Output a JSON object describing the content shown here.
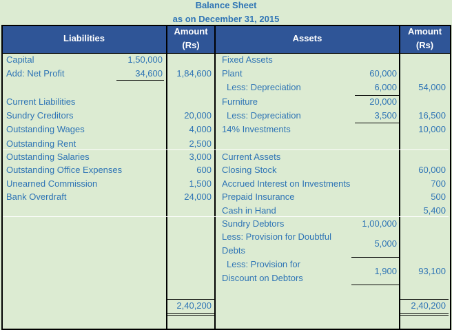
{
  "title": "Balance Sheet",
  "subtitle": "as on December 31, 2015",
  "headers": {
    "liabilities": "Liabilities",
    "amount1": "Amount",
    "rs1": "(Rs)",
    "assets": "Assets",
    "amount2": "Amount",
    "rs2": "(Rs)"
  },
  "liabilities": [
    {
      "label": "Capital",
      "sub": "1,50,000",
      "amount": ""
    },
    {
      "label": "Add: Net Profit",
      "sub": "34,600",
      "amount": "1,84,600"
    },
    {
      "label": "Current Liabilities",
      "sub": "",
      "amount": ""
    },
    {
      "label": "Sundry Creditors",
      "sub": "",
      "amount": "20,000"
    },
    {
      "label": "Outstanding Wages",
      "sub": "",
      "amount": "4,000"
    },
    {
      "label": "Outstanding Rent",
      "sub": "",
      "amount": "2,500"
    },
    {
      "label": "Outstanding Salaries",
      "sub": "",
      "amount": "3,000"
    },
    {
      "label": "Outstanding Office Expenses",
      "sub": "",
      "amount": "600"
    },
    {
      "label": "Unearned Commission",
      "sub": "",
      "amount": "1,500"
    },
    {
      "label": "Bank Overdraft",
      "sub": "",
      "amount": "24,000"
    }
  ],
  "assets": [
    {
      "label": "Fixed Assets",
      "sub": "",
      "amount": ""
    },
    {
      "label": "Plant",
      "sub": "60,000",
      "amount": ""
    },
    {
      "label": "Less: Depreciation",
      "sub": "6,000",
      "amount": "54,000"
    },
    {
      "label": "Furniture",
      "sub": "20,000",
      "amount": ""
    },
    {
      "label": "Less: Depreciation",
      "sub": "3,500",
      "amount": "16,500"
    },
    {
      "label": "14% Investments",
      "sub": "",
      "amount": "10,000"
    },
    {
      "label": "Current Assets",
      "sub": "",
      "amount": ""
    },
    {
      "label": "Closing Stock",
      "sub": "",
      "amount": "60,000"
    },
    {
      "label": "Accrued Interest on Investments",
      "sub": "",
      "amount": "700"
    },
    {
      "label": "Prepaid Insurance",
      "sub": "",
      "amount": "500"
    },
    {
      "label": "Cash in Hand",
      "sub": "",
      "amount": "5,400"
    },
    {
      "label": "Sundry Debtors",
      "sub": "1,00,000",
      "amount": ""
    },
    {
      "label": "Less: Provision for Doubtful",
      "label2": "Debts",
      "sub": "5,000",
      "amount": ""
    },
    {
      "label": "Less: Provision for",
      "label2": "Discount on Debtors",
      "sub": "1,900",
      "amount": "93,100"
    }
  ],
  "totals": {
    "liabilities": "2,40,200",
    "assets": "2,40,200"
  }
}
